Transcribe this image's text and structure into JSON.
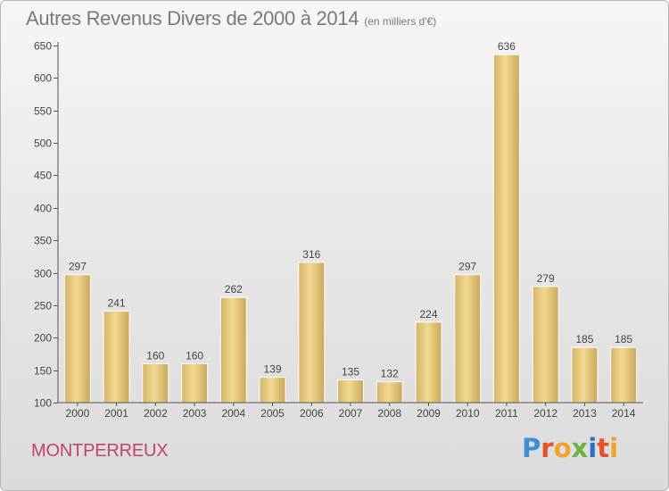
{
  "chart_data": {
    "type": "bar",
    "title": "Autres Revenus Divers de 2000 à 2014",
    "subtitle": "(en milliers d'€)",
    "categories": [
      "2000",
      "2001",
      "2002",
      "2003",
      "2004",
      "2005",
      "2006",
      "2007",
      "2008",
      "2009",
      "2010",
      "2011",
      "2012",
      "2013",
      "2014"
    ],
    "values": [
      297,
      241,
      160,
      160,
      262,
      139,
      316,
      135,
      132,
      224,
      297,
      636,
      279,
      185,
      185
    ],
    "ylim": [
      100,
      650
    ],
    "yticks": [
      100,
      150,
      200,
      250,
      300,
      350,
      400,
      450,
      500,
      550,
      600,
      650
    ],
    "grid": false,
    "bar_color": "#e8c97e",
    "xlabel": "",
    "ylabel": ""
  },
  "place_name": "MONTPERREUX",
  "logo": {
    "letters": [
      "P",
      "r",
      "o",
      "x",
      "i",
      "t",
      "i"
    ],
    "colors": [
      "#3f8fd1",
      "#e6502d",
      "#f0a32b",
      "#6cb33f",
      "#2f6fbf",
      "#e6502d",
      "#f0a32b"
    ]
  }
}
